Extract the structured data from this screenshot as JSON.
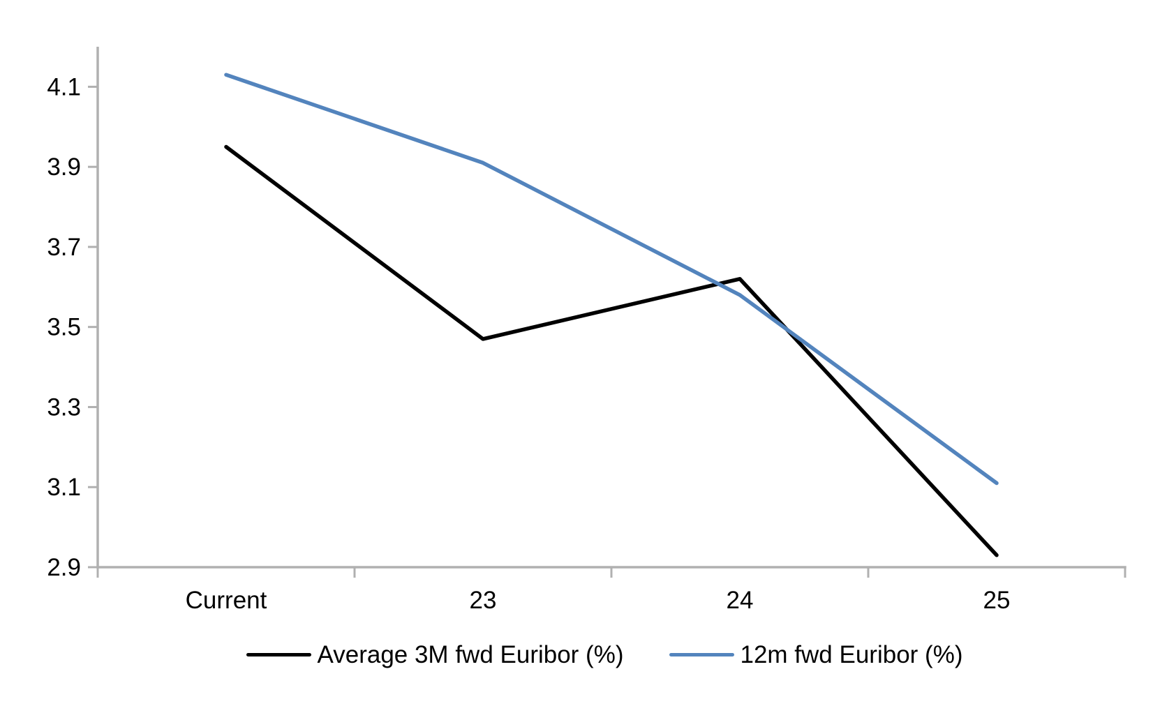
{
  "chart_data": {
    "type": "line",
    "title": "",
    "xlabel": "",
    "ylabel": "",
    "categories": [
      "Current",
      "23",
      "24",
      "25"
    ],
    "series": [
      {
        "name": "Average 3M fwd Euribor (%)",
        "color": "#000000",
        "values": [
          3.95,
          3.47,
          3.62,
          2.93
        ]
      },
      {
        "name": "12m fwd Euribor (%)",
        "color": "#5384BD",
        "values": [
          4.13,
          3.91,
          3.58,
          3.11
        ]
      }
    ],
    "ylim": [
      2.9,
      4.2
    ],
    "yticks": [
      2.9,
      3.1,
      3.3,
      3.5,
      3.7,
      3.9,
      4.1
    ],
    "ytick_labels": [
      "2.9",
      "3.1",
      "3.3",
      "3.5",
      "3.7",
      "3.9",
      "4.1"
    ],
    "grid": false,
    "legend_position": "bottom",
    "axis_color": "#B0B0B0",
    "text_color": "#000000"
  }
}
